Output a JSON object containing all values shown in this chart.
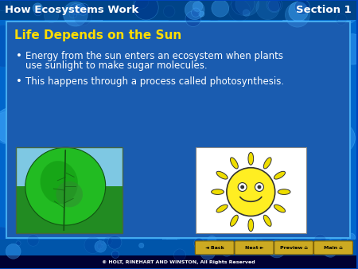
{
  "header_text_left": "How Ecosystems Work",
  "header_text_right": "Section 1",
  "header_text_color": "#ffffff",
  "header_font_size": 9.5,
  "header_bg_color": "#0055aa",
  "main_bg_color": "#1a5cb0",
  "outer_bg_color": "#0044bb",
  "title_text": "Life Depends on the Sun",
  "title_color": "#ffdd00",
  "title_font_size": 11,
  "bullet1_line1": "Energy from the sun enters an ecosystem when plants",
  "bullet1_line2": "use sunlight to make sugar molecules.",
  "bullet2": "This happens through a process called photosynthesis.",
  "bullet_color": "#ffffff",
  "bullet_font_size": 8.5,
  "footer_text": "© HOLT, RINEHART AND WINSTON, All Rights Reserved",
  "footer_color": "#ffffff",
  "footer_bg": "#000033",
  "nav_buttons": [
    "◄ Back",
    "Next ►",
    "Preview ⌂",
    "Main ⌂"
  ],
  "nav_button_color": "#ccaa22",
  "inner_panel_color": "#1a6ec0",
  "inner_panel_border": "#44aaee",
  "bubble_color": "#2288cc",
  "bubble_edge": "#33aadd"
}
